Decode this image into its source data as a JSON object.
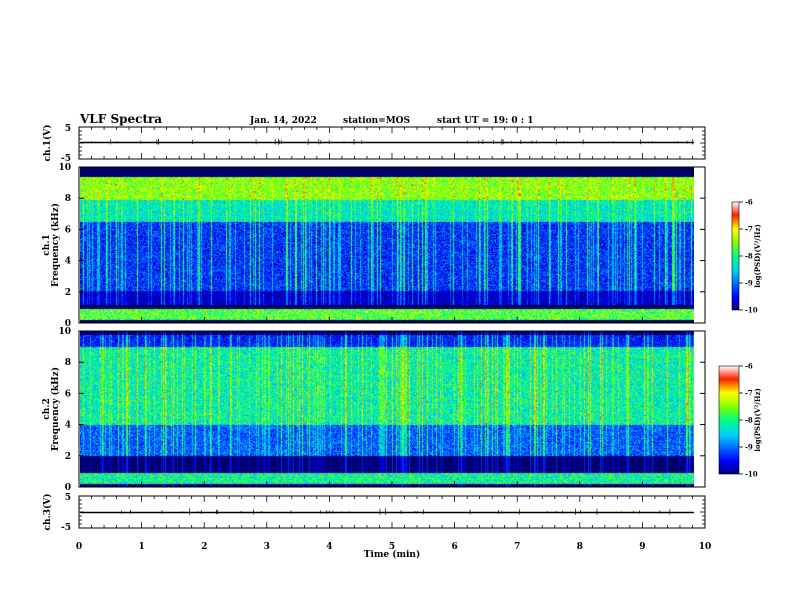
{
  "header": {
    "title": "VLF Spectra",
    "date": "Jan. 14, 2022",
    "station": "station=MOS",
    "start": "start UT =  19: 0  : 1"
  },
  "chart_data": [
    {
      "id": "ch1_waveform",
      "type": "line",
      "ylabel": "ch.1(V)",
      "ylim": [
        -5,
        5
      ],
      "y_ticks": [
        "5",
        "-5"
      ],
      "xlim": [
        0,
        10
      ],
      "series": [
        {
          "values_description_free": true,
          "x": [
            0,
            9.82
          ],
          "y": [
            0,
            0
          ]
        }
      ]
    },
    {
      "id": "ch1_spectrogram",
      "type": "heatmap",
      "ylabel": "ch.1",
      "ylabel2": "Frequency (kHz)",
      "ylim": [
        0,
        10
      ],
      "y_ticks": [
        "0",
        "2",
        "4",
        "6",
        "8",
        "10"
      ],
      "xlim": [
        0,
        10
      ],
      "colorbar": {
        "label": "log(PSD)(V²/Hz)",
        "range": [
          -10,
          -6
        ],
        "ticks": [
          "-6",
          "-7",
          "-8",
          "-9",
          "-10"
        ]
      }
    },
    {
      "id": "ch2_spectrogram",
      "type": "heatmap",
      "ylabel": "ch.2",
      "ylabel2": "Frequency (kHz)",
      "ylim": [
        0,
        10
      ],
      "y_ticks": [
        "0",
        "2",
        "4",
        "6",
        "8",
        "10"
      ],
      "xlim": [
        0,
        10
      ],
      "colorbar": {
        "label": "log(PSD)(V²/Hz)",
        "range": [
          -10,
          -6
        ],
        "ticks": [
          "-6",
          "-7",
          "-8",
          "-9",
          "-10"
        ]
      }
    },
    {
      "id": "ch3_waveform",
      "type": "line",
      "ylabel": "ch.3(V)",
      "ylim": [
        -5,
        5
      ],
      "y_ticks": [
        "5",
        "-5"
      ],
      "xlim": [
        0,
        10
      ],
      "xlabel": "Time (min)",
      "x_ticks": [
        "0",
        "1",
        "2",
        "3",
        "4",
        "5",
        "6",
        "7",
        "8",
        "9",
        "10"
      ]
    }
  ]
}
